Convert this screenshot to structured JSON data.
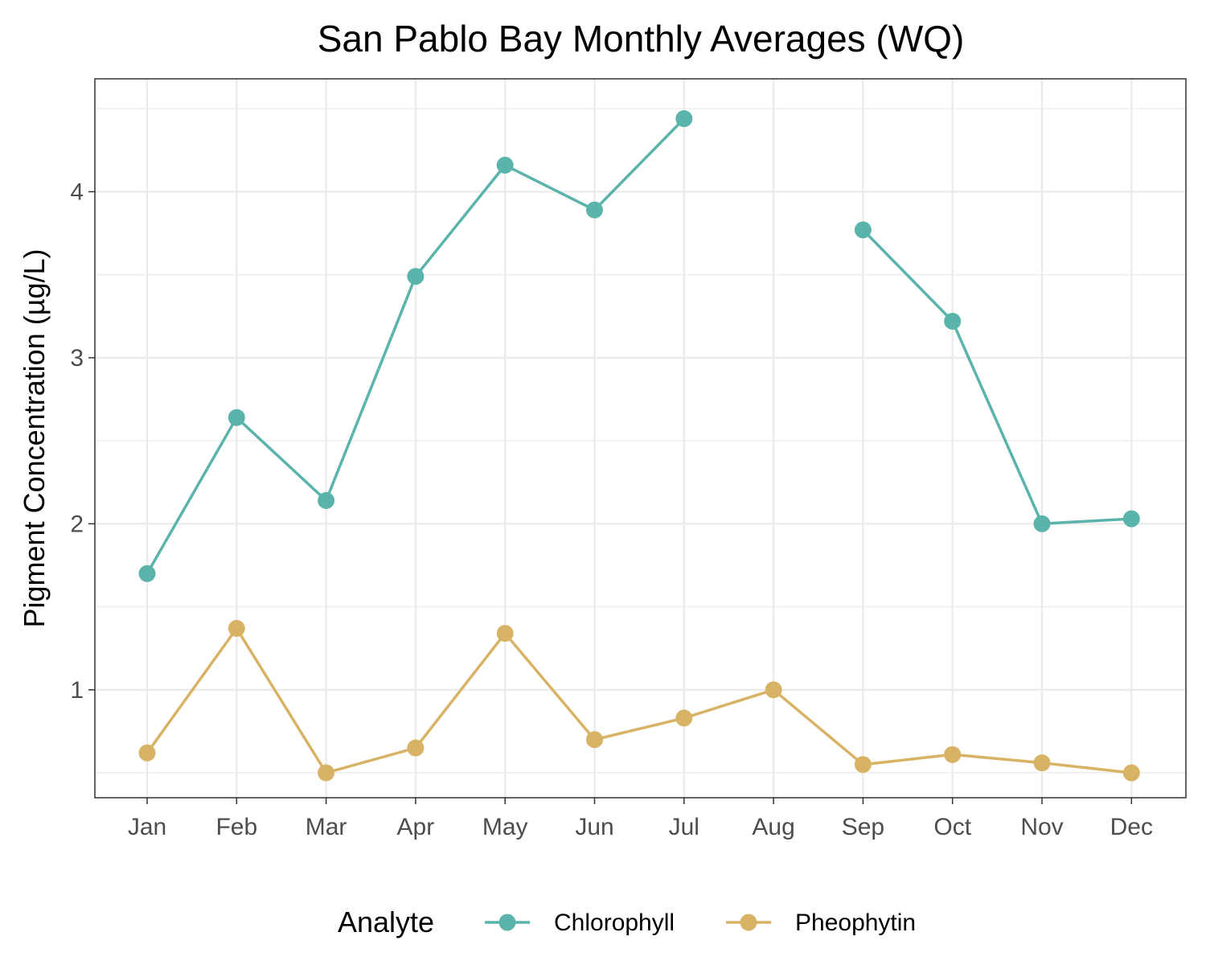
{
  "chart_data": {
    "type": "line",
    "title": "San Pablo Bay Monthly Averages (WQ)",
    "xlabel": "",
    "ylabel": "Pigment Concentration (µg/L)",
    "categories": [
      "Jan",
      "Feb",
      "Mar",
      "Apr",
      "May",
      "Jun",
      "Jul",
      "Aug",
      "Sep",
      "Oct",
      "Nov",
      "Dec"
    ],
    "yticks": [
      "1",
      "2",
      "3",
      "4"
    ],
    "ylim": [
      0.35,
      4.68
    ],
    "grid": true,
    "legend": {
      "title": "Analyte",
      "position": "bottom"
    },
    "series": [
      {
        "name": "Chlorophyll",
        "color": "#5BB4AC",
        "values": [
          1.7,
          2.64,
          2.14,
          3.49,
          4.16,
          3.89,
          4.44,
          null,
          3.77,
          3.22,
          2.0,
          2.03
        ]
      },
      {
        "name": "Pheophytin",
        "color": "#D8B365",
        "values": [
          0.62,
          1.37,
          0.5,
          0.65,
          1.34,
          0.7,
          0.83,
          1.0,
          0.55,
          0.61,
          0.56,
          0.5
        ]
      }
    ]
  }
}
